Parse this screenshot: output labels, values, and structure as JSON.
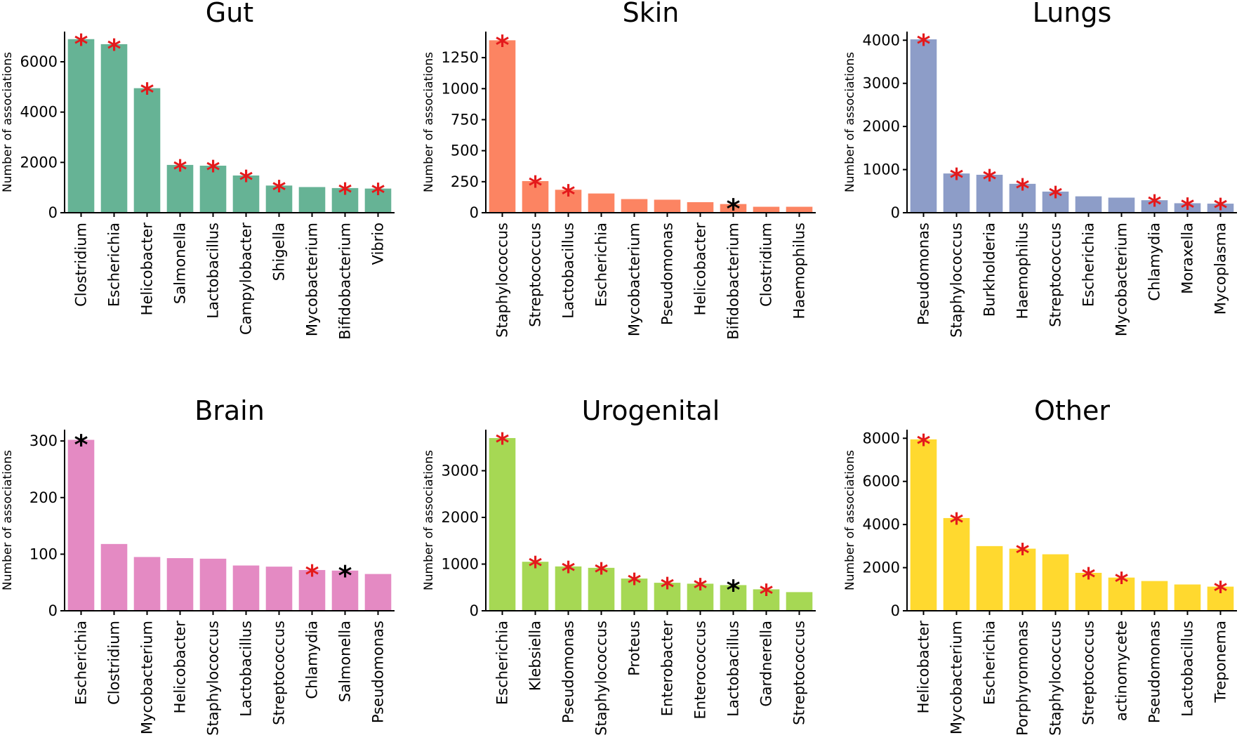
{
  "star_glyph": "*",
  "colors": {
    "sig_red": "#e41a1c",
    "sig_black": "#000000"
  },
  "chart_data": [
    {
      "type": "bar",
      "title": "Gut",
      "ylabel": "Number of associations",
      "color": "#66b395",
      "ylim": [
        0,
        7200
      ],
      "yticks": [
        0,
        2000,
        4000,
        6000
      ],
      "categories": [
        "Clostridium",
        "Escherichia",
        "Helicobacter",
        "Salmonella",
        "Lactobacillus",
        "Campylobacter",
        "Shigella",
        "Mycobacterium",
        "Bifidobacterium",
        "Vibrio"
      ],
      "values": [
        6900,
        6700,
        4950,
        1900,
        1870,
        1480,
        1080,
        1020,
        980,
        960
      ],
      "markers": [
        "red",
        "red",
        "red",
        "red",
        "red",
        "red",
        "red",
        null,
        "red",
        "red"
      ]
    },
    {
      "type": "bar",
      "title": "Skin",
      "ylabel": "Number of associations",
      "color": "#fc8462",
      "ylim": [
        0,
        1460
      ],
      "yticks": [
        0,
        250,
        500,
        750,
        1000,
        1250
      ],
      "categories": [
        "Staphylococcus",
        "Streptococcus",
        "Lactobacillus",
        "Escherichia",
        "Mycobacterium",
        "Pseudomonas",
        "Helicobacter",
        "Bifidobacterium",
        "Clostridium",
        "Haemophilus"
      ],
      "values": [
        1390,
        255,
        185,
        155,
        110,
        105,
        85,
        70,
        48,
        48
      ],
      "markers": [
        "red",
        "red",
        "red",
        null,
        null,
        null,
        null,
        "black",
        null,
        null
      ]
    },
    {
      "type": "bar",
      "title": "Lungs",
      "ylabel": "Number of associations",
      "color": "#8d9dc8",
      "ylim": [
        0,
        4200
      ],
      "yticks": [
        0,
        1000,
        2000,
        3000,
        4000
      ],
      "categories": [
        "Pseudomonas",
        "Staphylococcus",
        "Burkholderia",
        "Haemophilus",
        "Streptococcus",
        "Escherichia",
        "Mycobacterium",
        "Chlamydia",
        "Moraxella",
        "Mycoplasma"
      ],
      "values": [
        4020,
        910,
        880,
        670,
        490,
        380,
        350,
        290,
        220,
        210
      ],
      "markers": [
        "red",
        "red",
        "red",
        "red",
        "red",
        null,
        null,
        "red",
        "red",
        "red"
      ]
    },
    {
      "type": "bar",
      "title": "Brain",
      "ylabel": "Number of associations",
      "color": "#e48ac3",
      "ylim": [
        0,
        320
      ],
      "yticks": [
        0,
        100,
        200,
        300
      ],
      "categories": [
        "Escherichia",
        "Clostridium",
        "Mycobacterium",
        "Helicobacter",
        "Staphylococcus",
        "Lactobacillus",
        "Streptococcus",
        "Chlamydia",
        "Salmonella",
        "Pseudomonas"
      ],
      "values": [
        302,
        118,
        95,
        93,
        92,
        80,
        78,
        72,
        71,
        65
      ],
      "markers": [
        "black",
        null,
        null,
        null,
        null,
        null,
        null,
        "red",
        "black",
        null
      ]
    },
    {
      "type": "bar",
      "title": "Urogenital",
      "ylabel": "Number of associations",
      "color": "#a6d854",
      "ylim": [
        0,
        3880
      ],
      "yticks": [
        0,
        1000,
        2000,
        3000
      ],
      "categories": [
        "Escherichia",
        "Klebsiella",
        "Pseudomonas",
        "Staphylococcus",
        "Proteus",
        "Enterobacter",
        "Enterococcus",
        "Lactobacillus",
        "Gardnerella",
        "Streptococcus"
      ],
      "values": [
        3700,
        1050,
        950,
        920,
        690,
        600,
        580,
        550,
        460,
        400
      ],
      "markers": [
        "red",
        "red",
        "red",
        "red",
        "red",
        "red",
        "red",
        "black",
        "red",
        null
      ]
    },
    {
      "type": "bar",
      "title": "Other",
      "ylabel": "Number of associations",
      "color": "#ffd92f",
      "ylim": [
        0,
        8400
      ],
      "yticks": [
        0,
        2000,
        4000,
        6000,
        8000
      ],
      "categories": [
        "Helicobacter",
        "Mycobacterium",
        "Escherichia",
        "Porphyromonas",
        "Staphylococcus",
        "Streptococcus",
        "actinomycete",
        "Pseudomonas",
        "Lactobacillus",
        "Treponema"
      ],
      "values": [
        7950,
        4300,
        3000,
        2880,
        2620,
        1760,
        1540,
        1380,
        1220,
        1120
      ],
      "markers": [
        "red",
        "red",
        null,
        "red",
        null,
        "red",
        "red",
        null,
        null,
        "red"
      ]
    }
  ]
}
